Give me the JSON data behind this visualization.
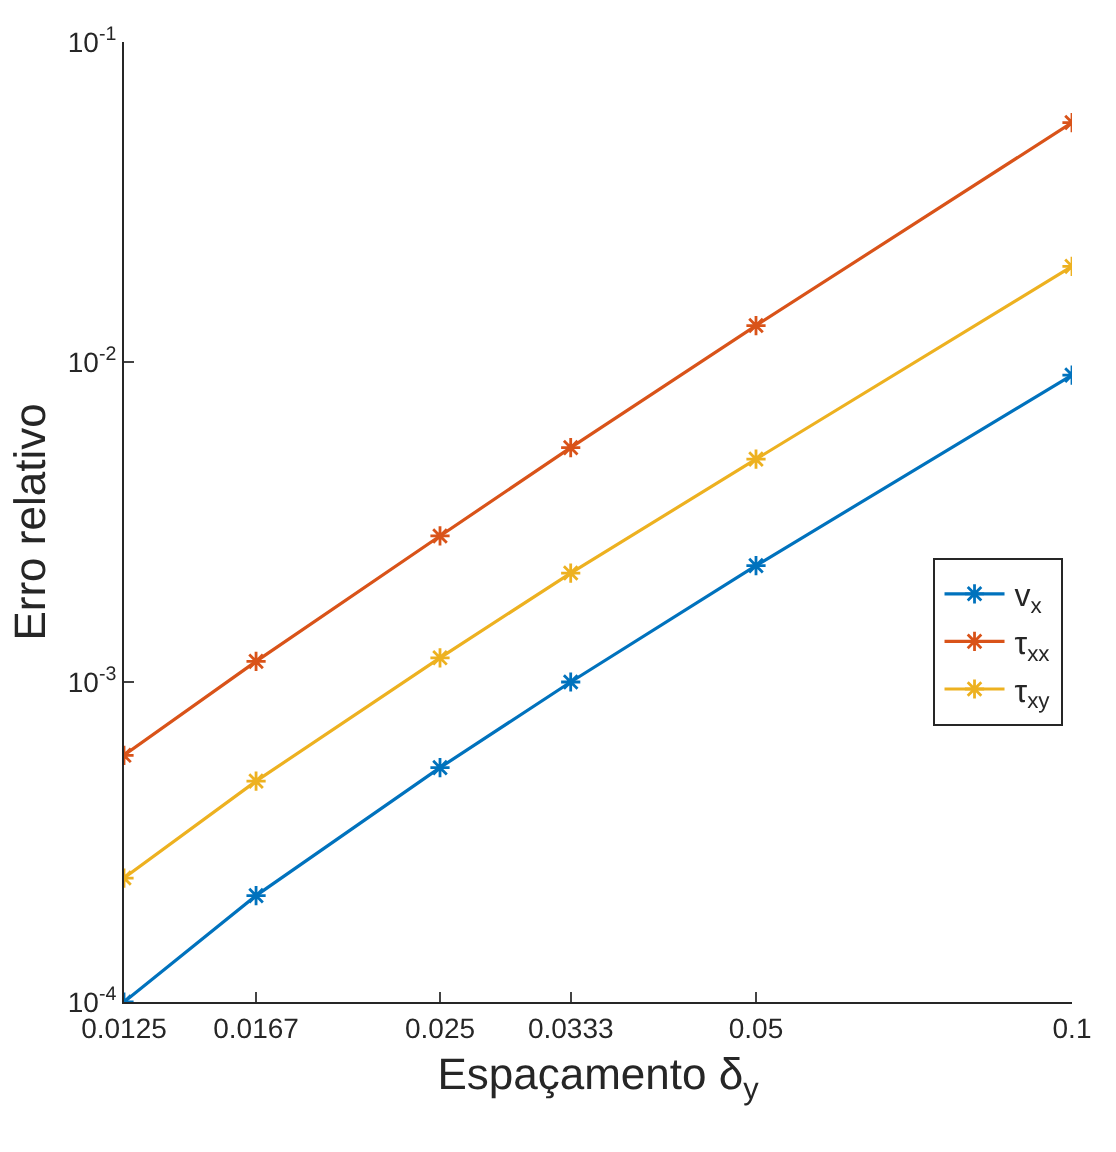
{
  "chart_data": {
    "type": "line",
    "xlabel": "Espaçamento δ$_{y}$",
    "ylabel": "Erro relativo",
    "x": [
      0.0125,
      0.0167,
      0.025,
      0.0333,
      0.05,
      0.1
    ],
    "series": [
      {
        "name": "v$_{x}$",
        "color": "#0072bd",
        "values": [
          0.0001,
          0.000215,
          0.00054,
          0.001,
          0.00231,
          0.0091
        ]
      },
      {
        "name": "τ$_{xx}$",
        "color": "#d95319",
        "values": [
          0.00059,
          0.00116,
          0.00286,
          0.0054,
          0.013,
          0.056
        ]
      },
      {
        "name": "τ$_{xy}$",
        "color": "#edb120",
        "values": [
          0.000244,
          0.00049,
          0.00119,
          0.00219,
          0.00497,
          0.0199
        ]
      }
    ],
    "log": "xy",
    "xlim": [
      0.0125,
      0.1
    ],
    "xticks": [
      0.0125,
      0.0167,
      0.025,
      0.0333,
      0.05,
      0.1
    ],
    "ylim": [
      0.0001,
      0.1
    ],
    "yticks": [
      {
        "value": 0.0001,
        "label": "10$^{-4}$"
      },
      {
        "value": 0.001,
        "label": "10$^{-3}$"
      },
      {
        "value": 0.01,
        "label": "10$^{-2}$"
      },
      {
        "value": 0.1,
        "label": "10$^{-1}$"
      }
    ],
    "legend": "right",
    "marker": "cross",
    "line_style": "solid",
    "grid": false
  }
}
